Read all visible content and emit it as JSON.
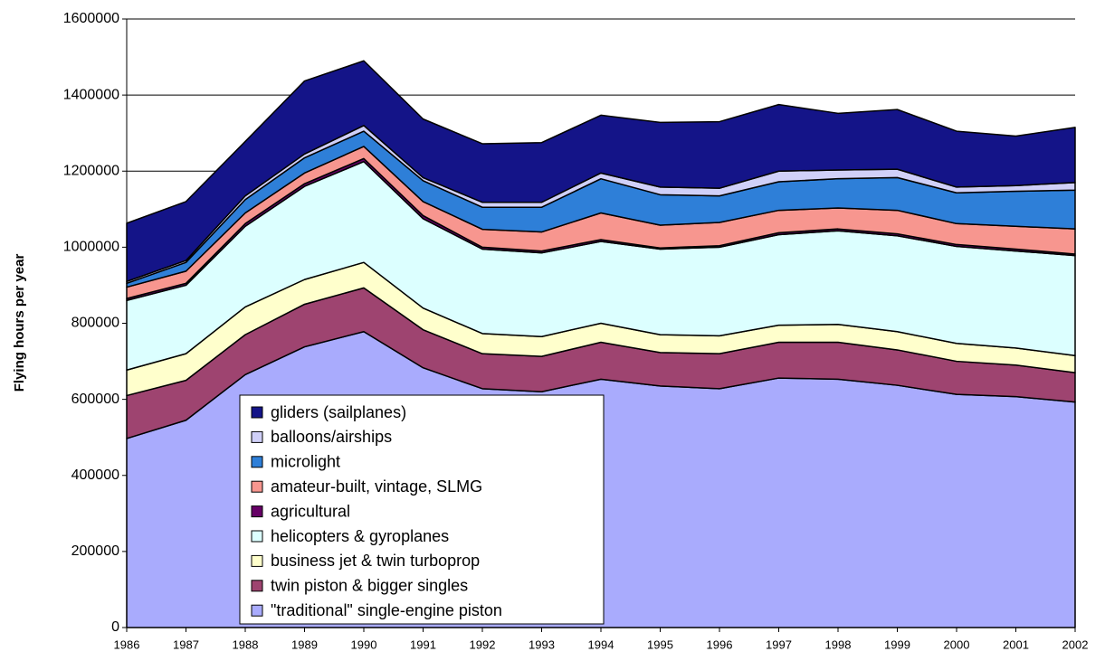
{
  "chart_data": {
    "type": "area",
    "stacked": true,
    "y_label": "Flying hours per year",
    "categories": [
      "1986",
      "1987",
      "1988",
      "1989",
      "1990",
      "1991",
      "1992",
      "1993",
      "1994",
      "1995",
      "1996",
      "1997",
      "1998",
      "1999",
      "2000",
      "2001",
      "2002"
    ],
    "ylim": [
      0,
      1600000
    ],
    "yticks": [
      0,
      200000,
      400000,
      600000,
      800000,
      1000000,
      1200000,
      1400000,
      1600000
    ],
    "grid": true,
    "series": [
      {
        "name": "\"traditional\" single-engine piston",
        "color": "#a9abfd",
        "values": [
          497000,
          545000,
          665000,
          738000,
          778000,
          683000,
          628000,
          620000,
          653000,
          635000,
          628000,
          656000,
          653000,
          637000,
          613000,
          607000,
          593000
        ]
      },
      {
        "name": "twin piston & bigger singles",
        "color": "#9e4470",
        "values": [
          113000,
          105000,
          105000,
          112000,
          115000,
          100000,
          92000,
          93000,
          97000,
          88000,
          92000,
          94000,
          97000,
          93000,
          87000,
          83000,
          77000
        ]
      },
      {
        "name": "business jet & twin turboprop",
        "color": "#ffffcc",
        "values": [
          67000,
          70000,
          73000,
          65000,
          67000,
          57000,
          53000,
          52000,
          50000,
          47000,
          47000,
          45000,
          47000,
          48000,
          47000,
          45000,
          45000
        ]
      },
      {
        "name": "helicopters & gyroplanes",
        "color": "#dcffff",
        "values": [
          183000,
          180000,
          212000,
          245000,
          265000,
          235000,
          222000,
          220000,
          215000,
          225000,
          233000,
          238000,
          246000,
          252000,
          255000,
          255000,
          263000
        ]
      },
      {
        "name": "agricultural",
        "color": "#660066",
        "values": [
          5000,
          5000,
          7000,
          7000,
          8000,
          8000,
          5000,
          5000,
          5000,
          3000,
          4000,
          5000,
          5000,
          5000,
          5000,
          5000,
          4000
        ]
      },
      {
        "name": "amateur-built, vintage, SLMG",
        "color": "#f7968f",
        "values": [
          30000,
          32000,
          28000,
          28000,
          32000,
          37000,
          47000,
          50000,
          70000,
          60000,
          61000,
          59000,
          55000,
          62000,
          55000,
          60000,
          66000
        ]
      },
      {
        "name": "microlight",
        "color": "#2e7fd8",
        "values": [
          10000,
          23000,
          35000,
          40000,
          40000,
          55000,
          58000,
          65000,
          90000,
          80000,
          70000,
          75000,
          77000,
          86000,
          81000,
          92000,
          102000
        ]
      },
      {
        "name": "balloons/airships",
        "color": "#d0d0f8",
        "values": [
          5000,
          5000,
          10000,
          10000,
          15000,
          8000,
          13000,
          13000,
          15000,
          20000,
          20000,
          28000,
          23000,
          22000,
          15000,
          15000,
          20000
        ]
      },
      {
        "name": "gliders (sailplanes)",
        "color": "#141488",
        "values": [
          153000,
          155000,
          143000,
          192000,
          170000,
          154000,
          154000,
          157000,
          152000,
          170000,
          175000,
          175000,
          149000,
          157000,
          147000,
          130000,
          145000
        ]
      }
    ]
  }
}
